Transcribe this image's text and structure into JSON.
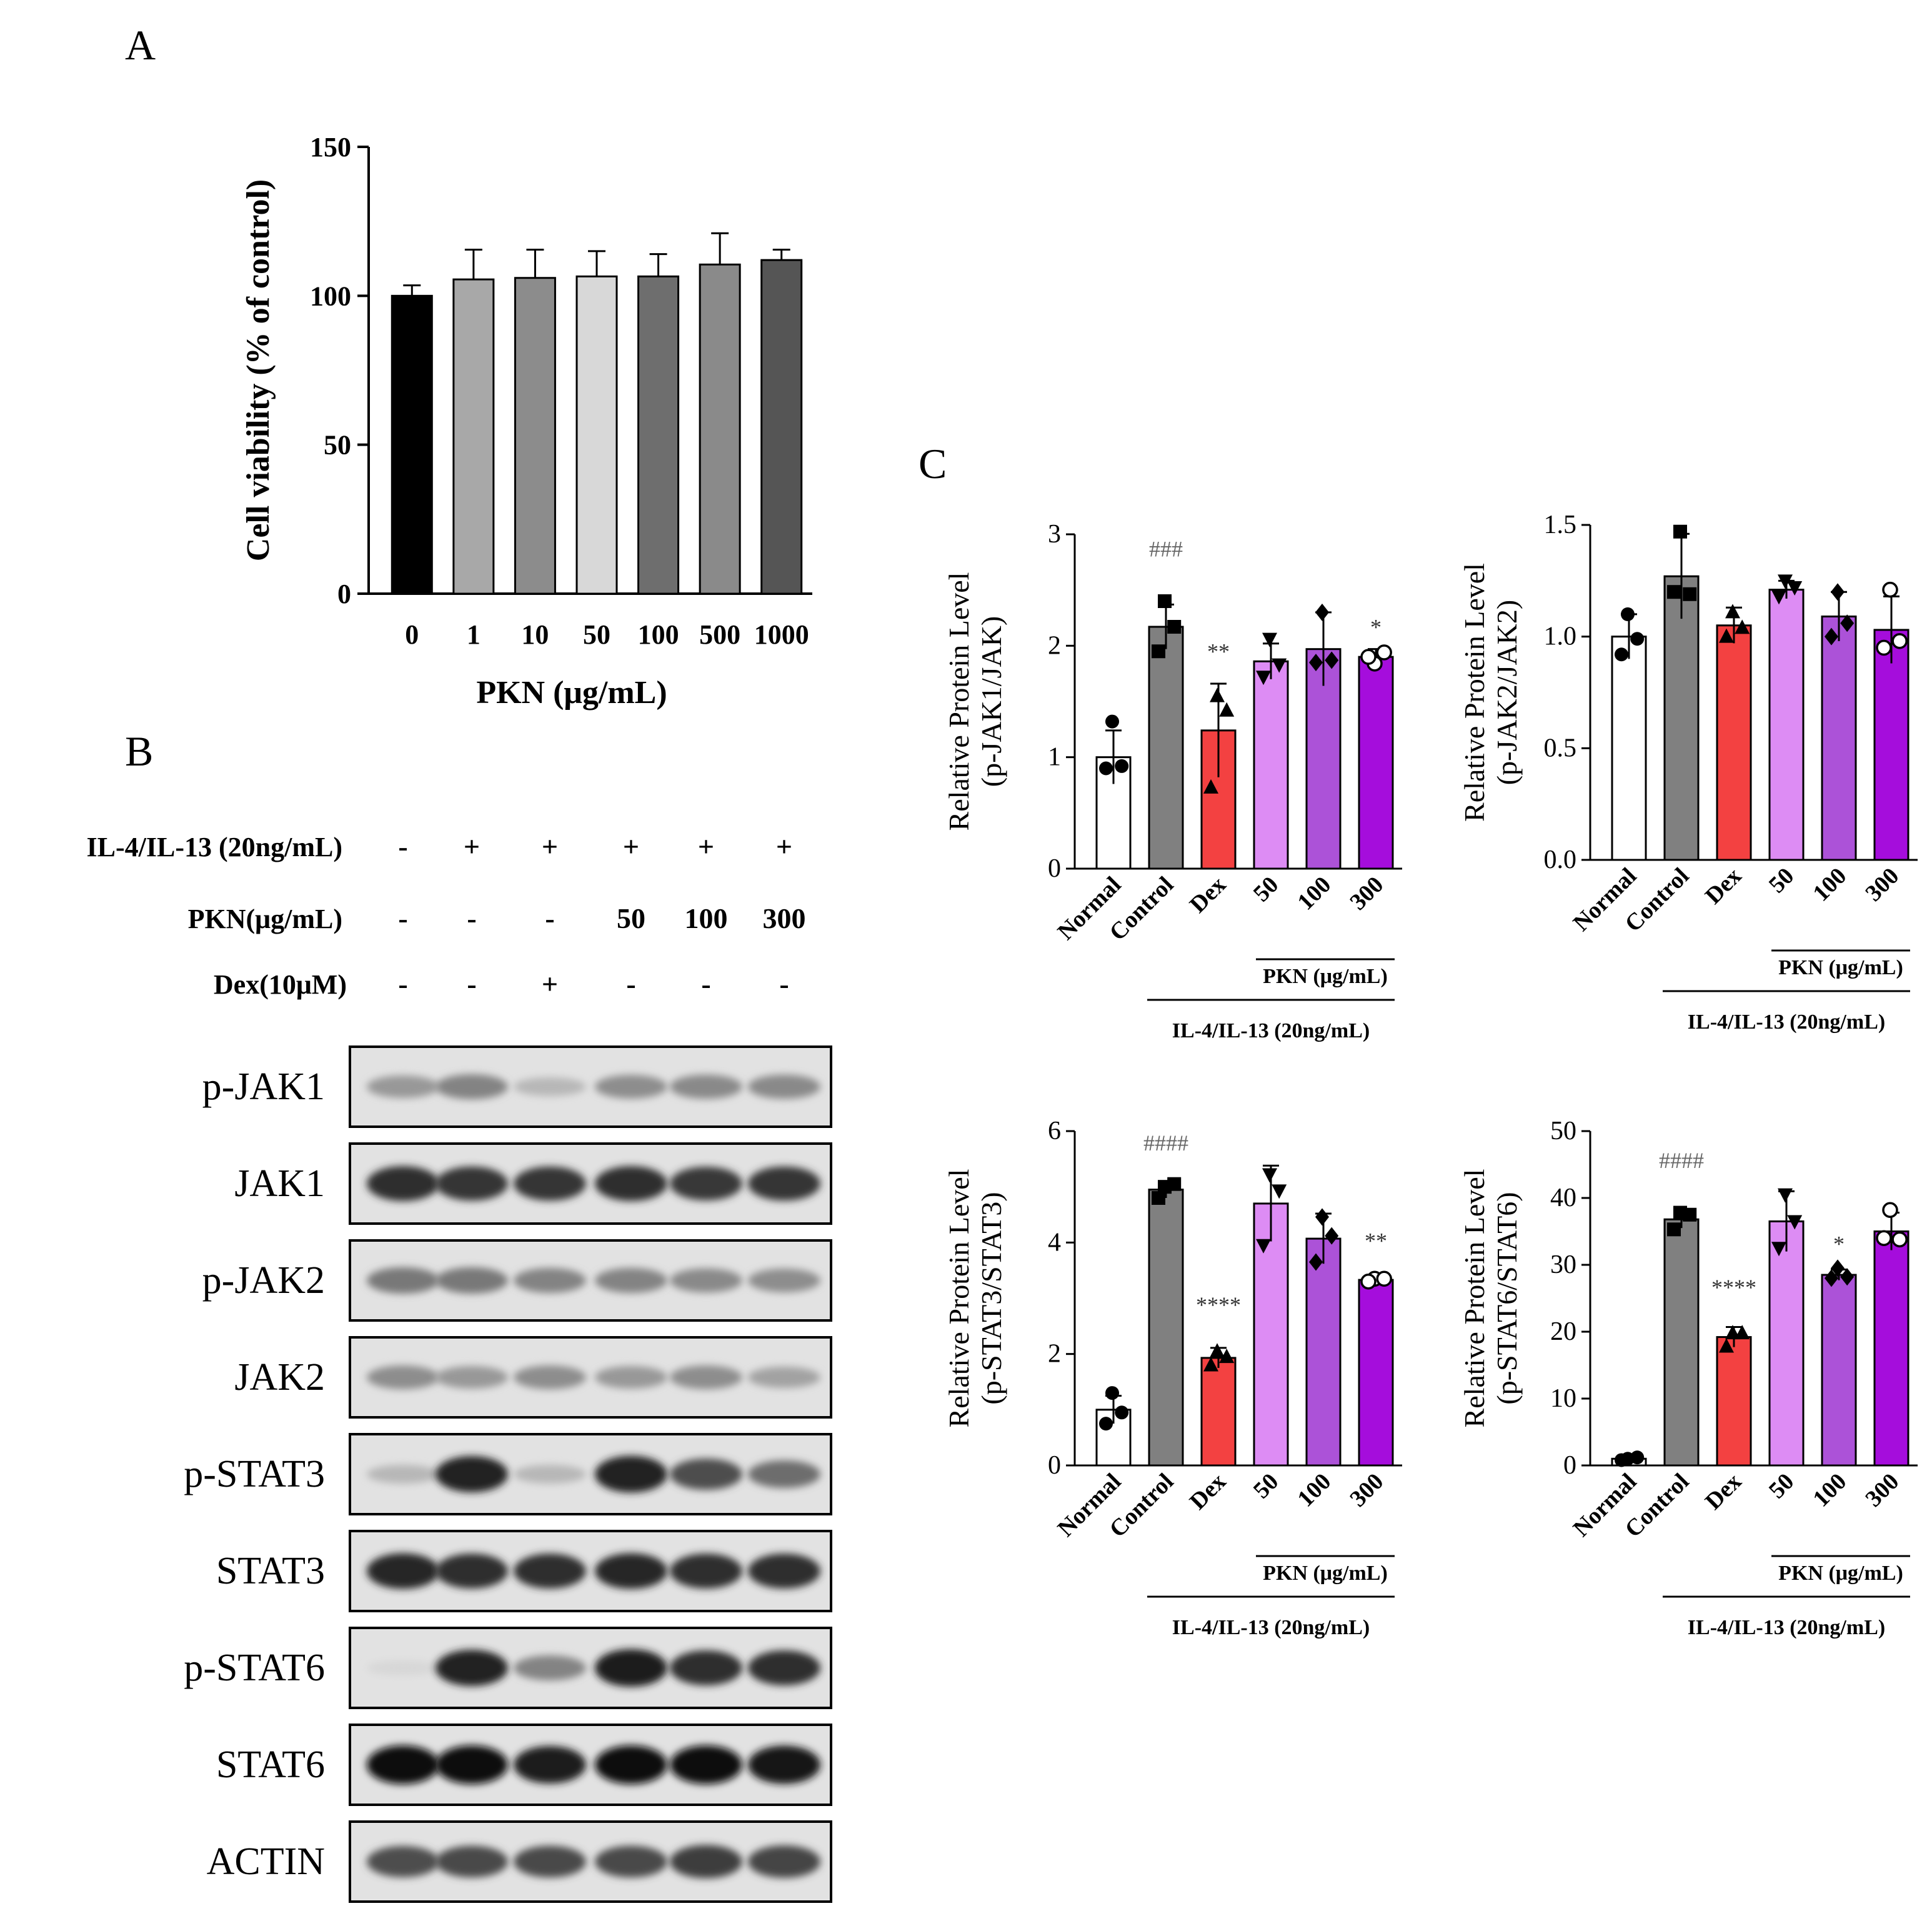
{
  "panels": {
    "a": "A",
    "b": "B",
    "c": "C"
  },
  "chart_data": [
    {
      "id": "A",
      "type": "bar",
      "title": "",
      "xlabel": "PKN  (μg/mL)",
      "ylabel": "Cell viability (% of control)",
      "ylim": [
        0,
        150
      ],
      "yticks": [
        0,
        50,
        100,
        150
      ],
      "categories": [
        "0",
        "1",
        "10",
        "50",
        "100",
        "500",
        "1000"
      ],
      "values": [
        100,
        105.5,
        106,
        106.5,
        106.5,
        110.5,
        112
      ],
      "errors": [
        3.5,
        10,
        9.5,
        8.5,
        7.5,
        10.5,
        3.5
      ],
      "colors": [
        "#000000",
        "#a8a8a8",
        "#8c8c8c",
        "#d8d8d8",
        "#6e6e6e",
        "#8a8a8a",
        "#555555"
      ]
    },
    {
      "id": "C1",
      "type": "bar",
      "ylabel": [
        "Relative Protein Level",
        "(p-JAK1/JAK)"
      ],
      "ylim": [
        0,
        3
      ],
      "yticks": [
        "0",
        "1",
        "2",
        "3"
      ],
      "categories": [
        "Normal",
        "Control",
        "Dex",
        "50",
        "100",
        "300"
      ],
      "values": [
        1.0,
        2.17,
        1.24,
        1.86,
        1.97,
        1.9
      ],
      "errors": [
        0.24,
        0.2,
        0.42,
        0.16,
        0.33,
        0.07
      ],
      "points": [
        [
          1.32,
          0.9,
          0.92
        ],
        [
          2.4,
          1.95,
          2.17
        ],
        [
          1.55,
          0.73,
          1.42
        ],
        [
          2.06,
          1.72,
          1.83
        ],
        [
          2.3,
          1.85,
          1.87
        ],
        [
          1.84,
          1.9,
          1.94
        ]
      ],
      "markers": [
        "circle",
        "square",
        "triangle",
        "triangle-down",
        "diamond",
        "open-circle"
      ],
      "colors": [
        "#ffffff",
        "#808080",
        "#f34141",
        "#dd8cf4",
        "#ac52d8",
        "#a50ddc"
      ],
      "annotations": [
        {
          "index": 1,
          "text": "###",
          "value": 2.8
        },
        {
          "index": 2,
          "text": "**",
          "value": 1.88
        },
        {
          "index": 5,
          "text": "*",
          "value": 2.1
        }
      ],
      "group_label": "PKN (μg/mL)",
      "treatment_label": "IL-4/IL-13 (20ng/mL)"
    },
    {
      "id": "C2",
      "type": "bar",
      "ylabel": [
        "Relative Protein Level",
        "(p-JAK2/JAK2)"
      ],
      "ylim": [
        0,
        1.5
      ],
      "yticks": [
        "0.0",
        "0.5",
        "1.0",
        "1.5"
      ],
      "categories": [
        "Normal",
        "Control",
        "Dex",
        "50",
        "100",
        "300"
      ],
      "values": [
        1.0,
        1.27,
        1.05,
        1.21,
        1.09,
        1.03
      ],
      "errors": [
        0.1,
        0.19,
        0.08,
        0.04,
        0.11,
        0.15
      ],
      "points": [
        [
          1.1,
          0.92,
          0.99
        ],
        [
          1.47,
          1.2,
          1.19
        ],
        [
          1.11,
          1.0,
          1.04
        ],
        [
          1.25,
          1.18,
          1.22
        ],
        [
          1.2,
          1.0,
          1.06
        ],
        [
          1.21,
          0.95,
          0.98
        ]
      ],
      "markers": [
        "circle",
        "square",
        "triangle",
        "triangle-down",
        "diamond",
        "open-circle"
      ],
      "colors": [
        "#ffffff",
        "#808080",
        "#f34141",
        "#dd8cf4",
        "#ac52d8",
        "#a50ddc"
      ],
      "annotations": [],
      "group_label": "PKN (μg/mL)",
      "treatment_label": "IL-4/IL-13 (20ng/mL)"
    },
    {
      "id": "C3",
      "type": "bar",
      "ylabel": [
        "Relative Protein Level",
        "(p-STAT3/STAT3)"
      ],
      "ylim": [
        0,
        6
      ],
      "yticks": [
        "0",
        "2",
        "4",
        "6"
      ],
      "categories": [
        "Normal",
        "Control",
        "Dex",
        "50",
        "100",
        "300"
      ],
      "values": [
        1.0,
        4.95,
        1.93,
        4.7,
        4.07,
        3.33
      ],
      "errors": [
        0.25,
        0.15,
        0.18,
        0.68,
        0.45,
        0.06
      ],
      "points": [
        [
          1.3,
          0.75,
          0.95
        ],
        [
          5.0,
          4.8,
          5.05
        ],
        [
          2.05,
          1.8,
          1.95
        ],
        [
          5.22,
          3.95,
          4.93
        ],
        [
          4.46,
          3.65,
          4.12
        ],
        [
          3.35,
          3.3,
          3.35
        ]
      ],
      "markers": [
        "circle",
        "square",
        "triangle",
        "triangle-down",
        "diamond",
        "open-circle"
      ],
      "colors": [
        "#ffffff",
        "#808080",
        "#f34141",
        "#dd8cf4",
        "#ac52d8",
        "#a50ddc"
      ],
      "annotations": [
        {
          "index": 1,
          "text": "####",
          "value": 5.65
        },
        {
          "index": 2,
          "text": "****",
          "value": 2.75
        },
        {
          "index": 5,
          "text": "**",
          "value": 3.9
        }
      ],
      "group_label": "PKN (μg/mL)",
      "treatment_label": "IL-4/IL-13 (20ng/mL)"
    },
    {
      "id": "C4",
      "type": "bar",
      "ylabel": [
        "Relative Protein Level",
        "(p-STAT6/STAT6)"
      ],
      "ylim": [
        0,
        50
      ],
      "yticks": [
        "0",
        "10",
        "20",
        "30",
        "40",
        "50"
      ],
      "categories": [
        "Normal",
        "Control",
        "Dex",
        "50",
        "100",
        "300"
      ],
      "values": [
        1.0,
        36.8,
        19.2,
        36.5,
        28.5,
        35.0
      ],
      "errors": [
        0.4,
        1.3,
        1.5,
        4.5,
        0.8,
        2.8
      ],
      "points": [
        [
          1.0,
          0.8,
          1.2
        ],
        [
          37.8,
          35.3,
          37.5
        ],
        [
          19.8,
          17.8,
          19.8
        ],
        [
          40.5,
          32.5,
          36.5
        ],
        [
          29.5,
          28.0,
          28.2
        ],
        [
          38.2,
          34.0,
          33.8
        ]
      ],
      "markers": [
        "circle",
        "square",
        "triangle",
        "triangle-down",
        "diamond",
        "open-circle"
      ],
      "colors": [
        "#ffffff",
        "#808080",
        "#f34141",
        "#dd8cf4",
        "#ac52d8",
        "#a50ddc"
      ],
      "annotations": [
        {
          "index": 1,
          "text": "####",
          "value": 44.5
        },
        {
          "index": 2,
          "text": "****",
          "value": 25.5
        },
        {
          "index": 4,
          "text": "*",
          "value": 32.0
        }
      ],
      "group_label": "PKN (μg/mL)",
      "treatment_label": "IL-4/IL-13 (20ng/mL)"
    }
  ],
  "western_blot": {
    "conditions": [
      {
        "label": "IL-4/IL-13 (20ng/mL)",
        "values": [
          "-",
          "+",
          "+",
          "+",
          "+",
          "+"
        ]
      },
      {
        "label": "PKN(μg/mL)",
        "values": [
          "-",
          "-",
          "-",
          "50",
          "100",
          "300"
        ]
      },
      {
        "label": "Dex(10μM)",
        "values": [
          "-",
          "-",
          "+",
          "-",
          "-",
          "-"
        ]
      }
    ],
    "proteins": [
      {
        "name": "p-JAK1",
        "intensity": [
          0.35,
          0.45,
          0.2,
          0.4,
          0.42,
          0.42
        ]
      },
      {
        "name": "JAK1",
        "intensity": [
          0.85,
          0.82,
          0.82,
          0.85,
          0.8,
          0.82
        ]
      },
      {
        "name": "p-JAK2",
        "intensity": [
          0.5,
          0.5,
          0.45,
          0.45,
          0.42,
          0.4
        ]
      },
      {
        "name": "JAK2",
        "intensity": [
          0.4,
          0.35,
          0.4,
          0.35,
          0.4,
          0.3
        ]
      },
      {
        "name": "p-STAT3",
        "intensity": [
          0.2,
          0.9,
          0.2,
          0.92,
          0.7,
          0.55
        ]
      },
      {
        "name": "STAT3",
        "intensity": [
          0.88,
          0.85,
          0.85,
          0.88,
          0.85,
          0.85
        ]
      },
      {
        "name": "p-STAT6",
        "intensity": [
          0.05,
          0.9,
          0.45,
          0.95,
          0.85,
          0.85
        ]
      },
      {
        "name": "STAT6",
        "intensity": [
          1,
          1,
          0.95,
          1,
          1,
          0.98
        ]
      },
      {
        "name": "ACTIN",
        "intensity": [
          0.7,
          0.72,
          0.72,
          0.72,
          0.78,
          0.75
        ]
      }
    ]
  }
}
